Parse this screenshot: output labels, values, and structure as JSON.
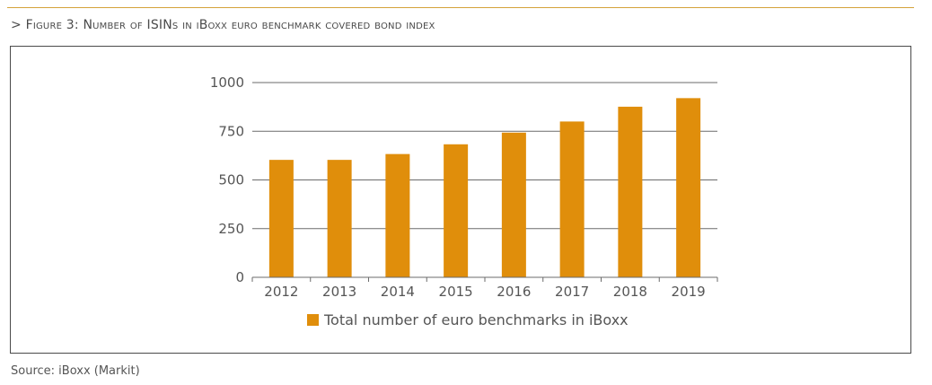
{
  "figure": {
    "title": "> Figure 3: Number of ISINs in iBoxx euro benchmark covered bond index",
    "source": "Source: iBoxx (Markit)"
  },
  "chart_data": {
    "type": "bar",
    "categories": [
      "2012",
      "2013",
      "2014",
      "2015",
      "2016",
      "2017",
      "2018",
      "2019"
    ],
    "series": [
      {
        "name": "Total number of euro benchmarks in iBoxx",
        "values": [
          603,
          603,
          633,
          683,
          743,
          800,
          876,
          920
        ],
        "color": "#e08e0b"
      }
    ],
    "ylim": [
      0,
      1000
    ],
    "yticks": [
      "0",
      "250",
      "500",
      "750",
      "1000"
    ],
    "grid": true,
    "legend": "bottom",
    "xlabel": "",
    "ylabel": ""
  },
  "colors": {
    "accent_line": "#d4a23a",
    "frame": "#4a4a4a",
    "bar": "#e08e0b"
  }
}
